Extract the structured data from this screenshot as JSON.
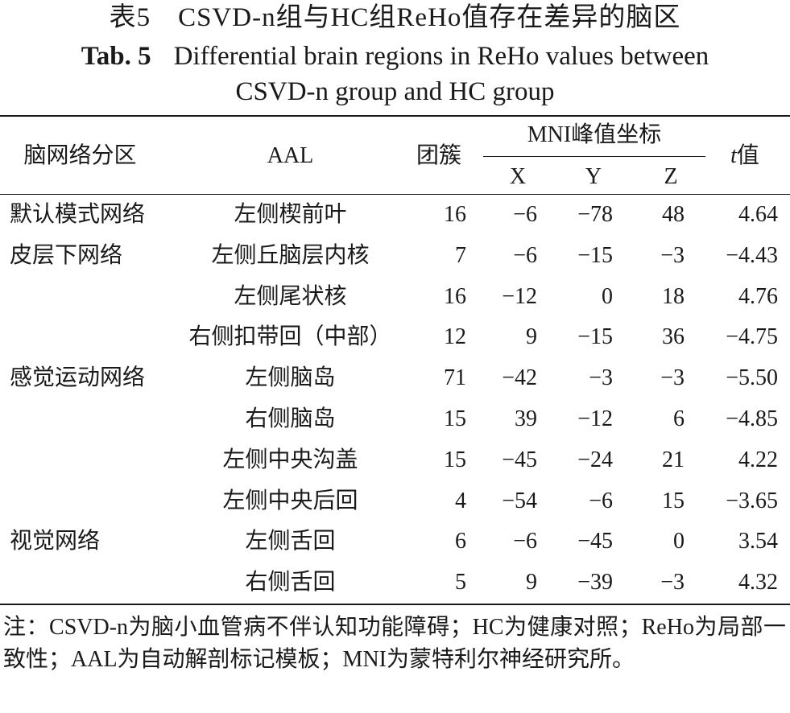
{
  "title_cn": "表5　CSVD-n组与HC组ReHo值存在差异的脑区",
  "title_en_label": "Tab. 5",
  "title_en_line1": "Differential brain regions in ReHo values between",
  "title_en_line2": "CSVD-n group and HC group",
  "header": {
    "network": "脑网络分区",
    "aal": "AAL",
    "cluster": "团簇",
    "mni": "MNI峰值坐标",
    "x": "X",
    "y": "Y",
    "z": "Z",
    "t_italic": "t",
    "t_suffix": "值"
  },
  "rows": [
    {
      "network": "默认模式网络",
      "aal": "左侧楔前叶",
      "cluster": "16",
      "x": "−6",
      "y": "−78",
      "z": "48",
      "t": "4.64"
    },
    {
      "network": "皮层下网络",
      "aal": "左侧丘脑层内核",
      "cluster": "7",
      "x": "−6",
      "y": "−15",
      "z": "−3",
      "t": "−4.43"
    },
    {
      "network": "",
      "aal": "左侧尾状核",
      "cluster": "16",
      "x": "−12",
      "y": "0",
      "z": "18",
      "t": "4.76"
    },
    {
      "network": "",
      "aal": "右侧扣带回（中部）",
      "cluster": "12",
      "x": "9",
      "y": "−15",
      "z": "36",
      "t": "−4.75"
    },
    {
      "network": "感觉运动网络",
      "aal": "左侧脑岛",
      "cluster": "71",
      "x": "−42",
      "y": "−3",
      "z": "−3",
      "t": "−5.50"
    },
    {
      "network": "",
      "aal": "右侧脑岛",
      "cluster": "15",
      "x": "39",
      "y": "−12",
      "z": "6",
      "t": "−4.85"
    },
    {
      "network": "",
      "aal": "左侧中央沟盖",
      "cluster": "15",
      "x": "−45",
      "y": "−24",
      "z": "21",
      "t": "4.22"
    },
    {
      "network": "",
      "aal": "左侧中央后回",
      "cluster": "4",
      "x": "−54",
      "y": "−6",
      "z": "15",
      "t": "−3.65"
    },
    {
      "network": "视觉网络",
      "aal": "左侧舌回",
      "cluster": "6",
      "x": "−6",
      "y": "−45",
      "z": "0",
      "t": "3.54"
    },
    {
      "network": "",
      "aal": "右侧舌回",
      "cluster": "5",
      "x": "9",
      "y": "−39",
      "z": "−3",
      "t": "4.32"
    }
  ],
  "note": "注：CSVD-n为脑小血管病不伴认知功能障碍；HC为健康对照；ReHo为局部一致性；AAL为自动解剖标记模板；MNI为蒙特利尔神经研究所。"
}
